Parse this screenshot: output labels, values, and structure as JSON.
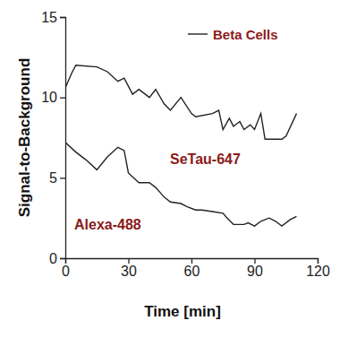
{
  "chart_data": {
    "type": "line",
    "title": "Beta Cells",
    "x_label": "Time [min]",
    "y_label": "Signal-to-Background",
    "xlim": [
      0,
      120
    ],
    "xticks": [
      0,
      30,
      60,
      90,
      120
    ],
    "ylim": [
      0,
      15
    ],
    "yticks": [
      0,
      5,
      10,
      15
    ],
    "series": [
      {
        "name": "SeTau-647",
        "color": "#222222",
        "x": [
          0,
          3,
          5,
          15,
          20,
          25,
          28,
          32,
          35,
          40,
          43,
          47,
          50,
          55,
          60,
          62,
          70,
          73,
          75,
          78,
          80,
          83,
          85,
          88,
          90,
          93,
          95,
          103,
          105,
          110
        ],
        "values": [
          10.6,
          11.5,
          12.0,
          11.9,
          11.6,
          11.0,
          11.2,
          10.2,
          10.5,
          10.0,
          10.5,
          9.6,
          9.2,
          10.0,
          9.0,
          8.8,
          9.0,
          9.2,
          8.0,
          8.7,
          8.2,
          8.5,
          8.0,
          8.3,
          8.0,
          9.0,
          7.4,
          7.4,
          7.6,
          9.0
        ]
      },
      {
        "name": "Alexa-488",
        "color": "#222222",
        "x": [
          0,
          5,
          10,
          15,
          20,
          25,
          28,
          30,
          35,
          40,
          43,
          47,
          50,
          55,
          58,
          62,
          65,
          70,
          75,
          77,
          80,
          85,
          87,
          90,
          93,
          97,
          100,
          103,
          107,
          110
        ],
        "values": [
          7.2,
          6.6,
          6.1,
          5.5,
          6.3,
          6.9,
          6.7,
          5.3,
          4.7,
          4.7,
          4.4,
          3.8,
          3.5,
          3.4,
          3.2,
          3.0,
          3.0,
          2.9,
          2.8,
          2.5,
          2.1,
          2.1,
          2.2,
          2.0,
          2.3,
          2.5,
          2.3,
          2.0,
          2.4,
          2.6
        ]
      }
    ]
  }
}
